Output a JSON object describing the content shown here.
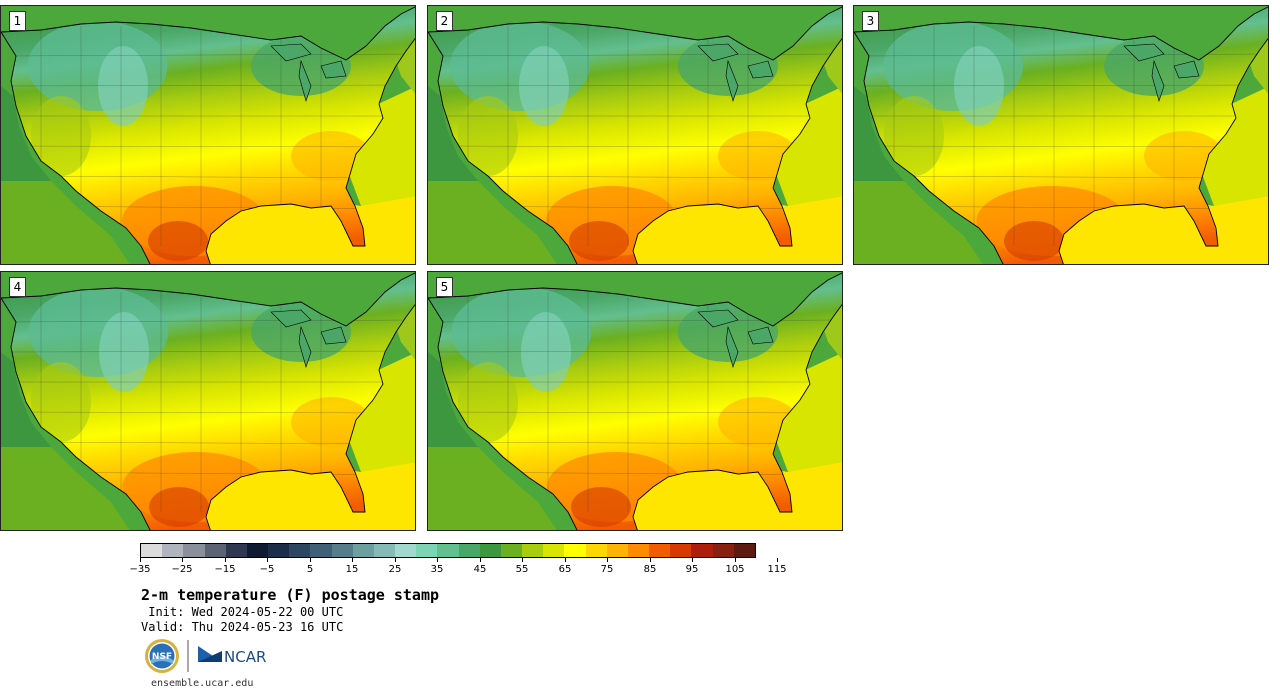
{
  "panels": [
    {
      "label": "1",
      "variant": 0.2
    },
    {
      "label": "2",
      "variant": -0.4
    },
    {
      "label": "3",
      "variant": 0.5
    },
    {
      "label": "4",
      "variant": 0.3
    },
    {
      "label": "5",
      "variant": -0.2
    }
  ],
  "colorbar": {
    "colors": [
      "#dcdcdc",
      "#b0b4bc",
      "#8a8f9c",
      "#5c6375",
      "#2f3850",
      "#0e1b33",
      "#1c2d4a",
      "#2d4662",
      "#3f6076",
      "#557e8a",
      "#6d9ea0",
      "#86bab6",
      "#a1d9cf",
      "#7dd3b5",
      "#63bf8e",
      "#4aa767",
      "#3d973f",
      "#6ab020",
      "#a8cc10",
      "#d8e500",
      "#ffff00",
      "#ffd700",
      "#ffb400",
      "#ff8c00",
      "#f25c00",
      "#d63a00",
      "#ad1f0c",
      "#862010",
      "#5c1a10"
    ],
    "tick_labels": [
      "−35",
      "−25",
      "−15",
      "−5",
      "5",
      "15",
      "25",
      "35",
      "45",
      "55",
      "65",
      "75",
      "85",
      "95",
      "105",
      "115"
    ]
  },
  "title": "2-m temperature (F) postage stamp",
  "init": " Init: Wed 2024-05-22 00 UTC",
  "valid": "Valid: Thu 2024-05-23 16 UTC",
  "logos": {
    "nsf": "NSF",
    "ncar": "NCAR"
  },
  "site": "ensemble.ucar.edu"
}
